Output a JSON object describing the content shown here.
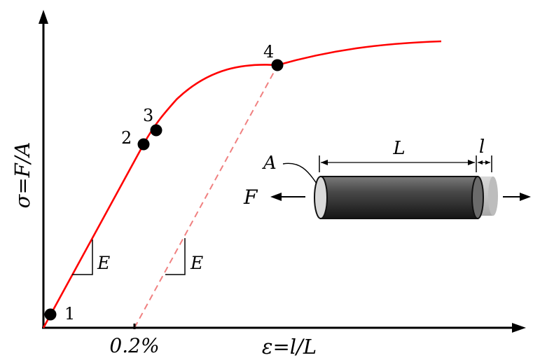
{
  "axes": {
    "y_label": "σ=F/A",
    "x_label": "ε=l/L",
    "x_tick": "0.2%"
  },
  "curve": {
    "color": "#ff0000",
    "offset_line_color": "#f08080"
  },
  "points": [
    {
      "label": "1"
    },
    {
      "label": "2"
    },
    {
      "label": "3"
    },
    {
      "label": "4"
    }
  ],
  "slope_label": "E",
  "specimen": {
    "area_label": "A",
    "length_label": "L",
    "elongation_label": "l",
    "force_label": "F"
  }
}
